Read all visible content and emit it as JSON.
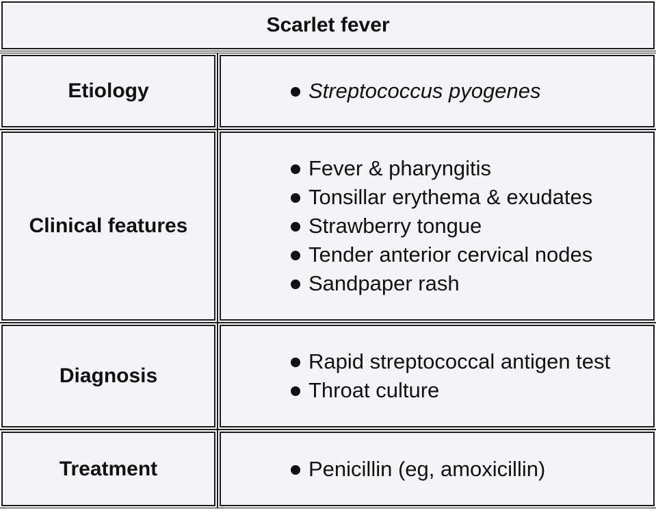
{
  "title": "Scarlet fever",
  "rows": [
    {
      "label": "Etiology",
      "items": [
        "Streptococcus pyogenes"
      ]
    },
    {
      "label": "Clinical features",
      "items": [
        "Fever & pharyngitis",
        "Tonsillar erythema & exudates",
        "Strawberry tongue",
        "Tender anterior cervical nodes",
        "Sandpaper rash"
      ]
    },
    {
      "label": "Diagnosis",
      "items": [
        "Rapid streptococcal antigen test",
        "Throat culture"
      ]
    },
    {
      "label": "Treatment",
      "items": [
        "Penicillin (eg, amoxicillin)"
      ]
    }
  ]
}
